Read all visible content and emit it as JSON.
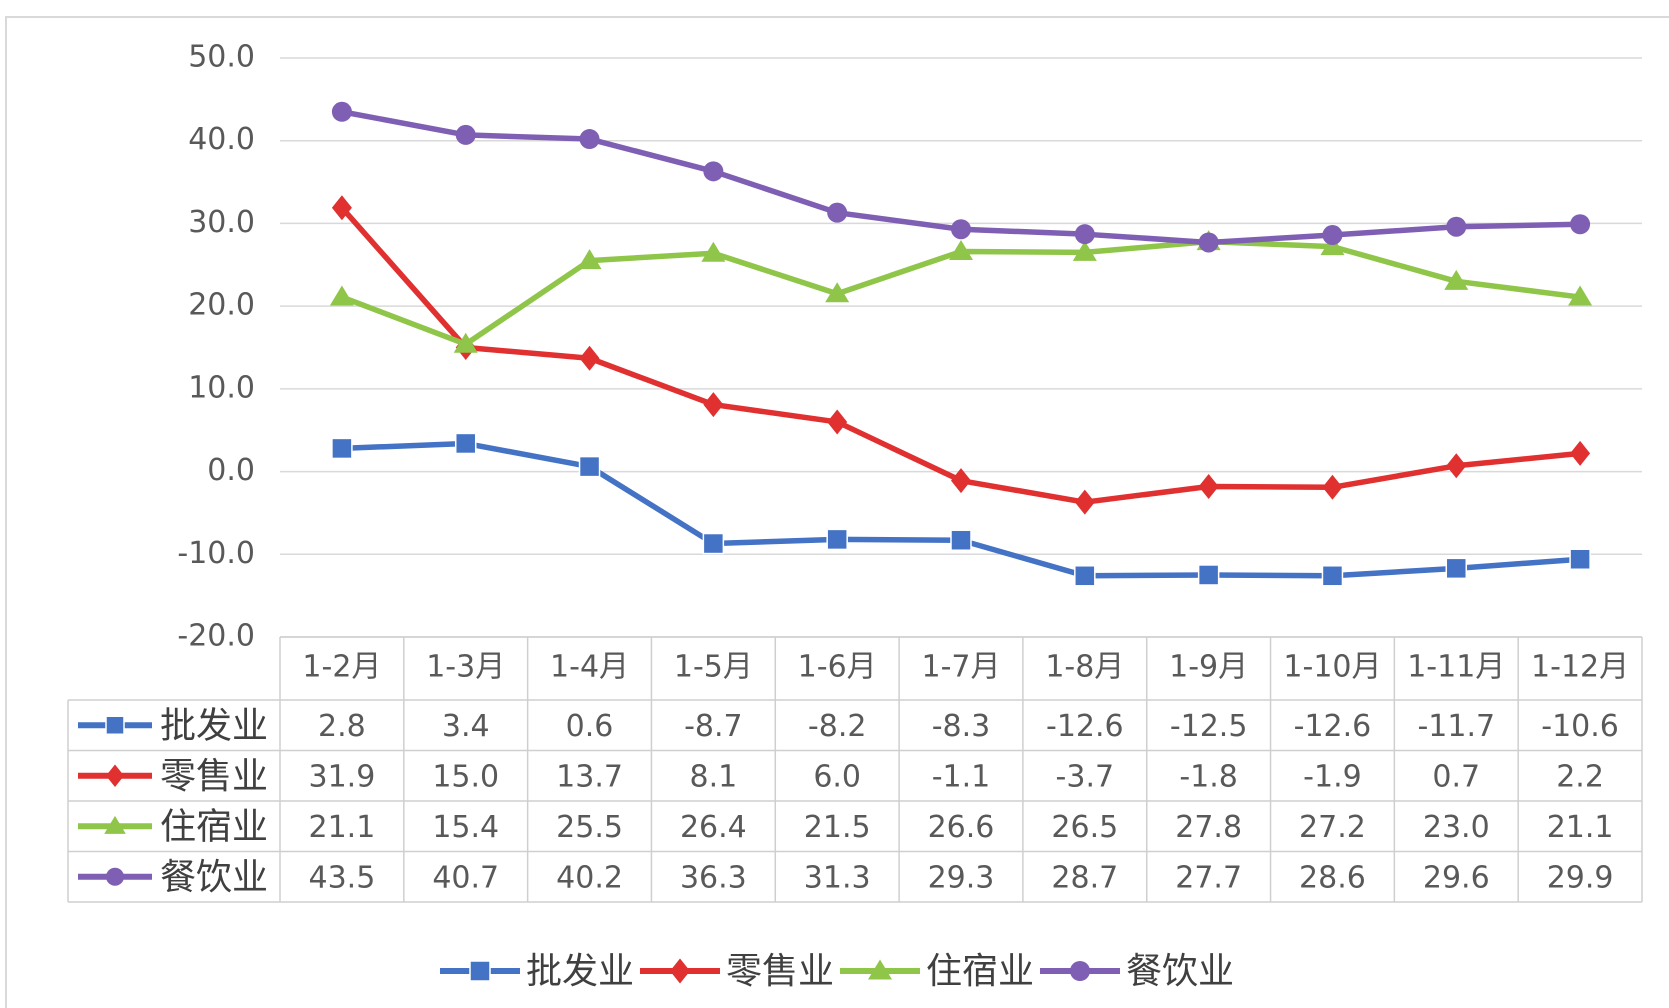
{
  "chart_data": {
    "type": "line",
    "categories": [
      "1-2月",
      "1-3月",
      "1-4月",
      "1-5月",
      "1-6月",
      "1-7月",
      "1-8月",
      "1-9月",
      "1-10月",
      "1-11月",
      "1-12月"
    ],
    "series": [
      {
        "name": "批发业",
        "marker": "square",
        "color": "#4472c4",
        "values": [
          2.8,
          3.4,
          0.6,
          -8.7,
          -8.2,
          -8.3,
          -12.6,
          -12.5,
          -12.6,
          -11.7,
          -10.6
        ]
      },
      {
        "name": "零售业",
        "marker": "diamond",
        "color": "#e03030",
        "values": [
          31.9,
          15.0,
          13.7,
          8.1,
          6.0,
          -1.1,
          -3.7,
          -1.8,
          -1.9,
          0.7,
          2.2
        ]
      },
      {
        "name": "住宿业",
        "marker": "triangle",
        "color": "#8fc549",
        "values": [
          21.1,
          15.4,
          25.5,
          26.4,
          21.5,
          26.6,
          26.5,
          27.8,
          27.2,
          23.0,
          21.1
        ]
      },
      {
        "name": "餐饮业",
        "marker": "circle",
        "color": "#7f5fb3",
        "values": [
          43.5,
          40.7,
          40.2,
          36.3,
          31.3,
          29.3,
          28.7,
          27.7,
          28.6,
          29.6,
          29.9
        ]
      }
    ],
    "yticks": [
      "50.0",
      "40.0",
      "30.0",
      "20.0",
      "10.0",
      "0.0",
      "-10.0",
      "-20.0"
    ],
    "ylim": [
      -20,
      50
    ],
    "grid": true,
    "data_table": true,
    "legend": "bottom"
  }
}
